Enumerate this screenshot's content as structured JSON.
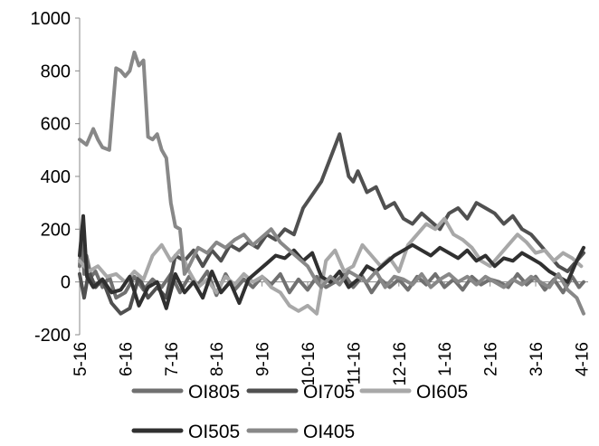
{
  "chart_data": {
    "type": "line",
    "title": "",
    "xlabel": "",
    "ylabel": "",
    "ylim": [
      -200,
      1000
    ],
    "yticks": [
      -200,
      0,
      200,
      400,
      600,
      800,
      1000
    ],
    "xticks": [
      "5-16",
      "6-16",
      "7-16",
      "8-16",
      "9-16",
      "10-16",
      "11-16",
      "12-16",
      "1-16",
      "2-16",
      "3-16",
      "4-16"
    ],
    "grid": false,
    "legend_position": "bottom",
    "x_note": "x values are months (0 = 5-16, 11 = 4-16)",
    "series": [
      {
        "name": "OI805",
        "color": "#707070",
        "x": [
          0,
          0.05,
          0.1,
          0.15,
          0.25,
          0.35,
          0.5,
          0.65,
          0.8,
          1.0,
          1.2,
          1.4,
          1.6,
          1.8,
          2.0,
          2.2,
          2.4,
          2.6,
          2.8,
          3.0,
          3.2,
          3.4,
          3.6,
          3.8,
          4.0,
          4.2,
          4.4,
          4.6,
          4.8,
          5.0,
          5.2,
          5.4,
          5.6,
          5.8,
          6.0,
          6.2,
          6.4,
          6.6,
          6.8,
          7.0,
          7.2,
          7.4,
          7.6,
          7.8,
          8.0,
          8.2,
          8.4,
          8.6,
          8.8,
          9.0,
          9.2,
          9.4,
          9.6,
          9.8,
          10.0,
          10.2,
          10.4,
          10.6,
          10.8,
          10.95,
          11.05
        ],
        "values": [
          60,
          170,
          30,
          100,
          20,
          40,
          -20,
          20,
          -60,
          -40,
          20,
          -30,
          10,
          -20,
          30,
          -40,
          20,
          -10,
          40,
          -50,
          30,
          -30,
          10,
          -20,
          20,
          -10,
          30,
          -40,
          10,
          -30,
          20,
          -20,
          0,
          30,
          -20,
          20,
          -40,
          10,
          -20,
          10,
          -30,
          20,
          -10,
          30,
          -20,
          10,
          -30,
          20,
          -10,
          10,
          0,
          -20,
          30,
          -10,
          20,
          -30,
          10,
          -40,
          20,
          -20,
          0
        ]
      },
      {
        "name": "OI705",
        "color": "#505050",
        "x": [
          0,
          0.1,
          0.2,
          0.35,
          0.5,
          0.7,
          0.9,
          1.1,
          1.3,
          1.5,
          1.7,
          1.9,
          2.1,
          2.3,
          2.5,
          2.7,
          2.9,
          3.1,
          3.3,
          3.5,
          3.7,
          3.9,
          4.1,
          4.3,
          4.5,
          4.7,
          4.9,
          5.1,
          5.3,
          5.5,
          5.7,
          5.9,
          6.0,
          6.1,
          6.3,
          6.5,
          6.7,
          6.9,
          7.1,
          7.3,
          7.5,
          7.7,
          7.9,
          8.1,
          8.3,
          8.5,
          8.7,
          8.9,
          9.1,
          9.3,
          9.5,
          9.7,
          9.9,
          10.1,
          10.3,
          10.5,
          10.7,
          10.9,
          11.05
        ],
        "values": [
          30,
          -60,
          40,
          -20,
          10,
          -80,
          -120,
          -100,
          20,
          -60,
          -20,
          -60,
          100,
          80,
          120,
          60,
          120,
          80,
          140,
          120,
          150,
          130,
          180,
          160,
          200,
          180,
          280,
          330,
          380,
          470,
          560,
          400,
          380,
          420,
          340,
          360,
          280,
          300,
          240,
          220,
          260,
          230,
          200,
          260,
          280,
          240,
          300,
          280,
          260,
          220,
          250,
          200,
          180,
          140,
          100,
          60,
          40,
          80,
          110
        ]
      },
      {
        "name": "OI605",
        "color": "#a8a8a8",
        "x": [
          0,
          0.2,
          0.4,
          0.6,
          0.8,
          1.0,
          1.2,
          1.4,
          1.6,
          1.8,
          2.0,
          2.2,
          2.4,
          2.6,
          2.8,
          3.0,
          3.2,
          3.4,
          3.6,
          3.8,
          4.0,
          4.2,
          4.4,
          4.6,
          4.8,
          5.0,
          5.2,
          5.4,
          5.6,
          5.8,
          6.0,
          6.2,
          6.4,
          6.6,
          6.8,
          7.0,
          7.2,
          7.4,
          7.6,
          7.8,
          8.0,
          8.2,
          8.4,
          8.6,
          8.8,
          9.0,
          9.2,
          9.4,
          9.6,
          9.8,
          10.0,
          10.2,
          10.4,
          10.6,
          10.8,
          11.0
        ],
        "values": [
          80,
          40,
          60,
          20,
          30,
          0,
          40,
          10,
          100,
          140,
          80,
          120,
          40,
          -20,
          10,
          -40,
          20,
          -10,
          30,
          0,
          20,
          -20,
          -40,
          -90,
          -110,
          -90,
          -120,
          80,
          120,
          40,
          60,
          140,
          100,
          60,
          90,
          40,
          140,
          180,
          220,
          200,
          240,
          180,
          160,
          130,
          80,
          60,
          100,
          140,
          180,
          150,
          110,
          120,
          80,
          110,
          90,
          60
        ]
      },
      {
        "name": "OI505",
        "color": "#303030",
        "x": [
          0,
          0.08,
          0.16,
          0.3,
          0.5,
          0.7,
          0.9,
          1.1,
          1.3,
          1.5,
          1.7,
          1.9,
          2.1,
          2.3,
          2.5,
          2.7,
          2.9,
          3.1,
          3.3,
          3.5,
          3.7,
          3.9,
          4.1,
          4.3,
          4.5,
          4.7,
          4.9,
          5.1,
          5.3,
          5.5,
          5.7,
          5.9,
          6.1,
          6.3,
          6.5,
          6.7,
          6.9,
          7.1,
          7.3,
          7.5,
          7.7,
          7.9,
          8.1,
          8.3,
          8.5,
          8.7,
          8.9,
          9.1,
          9.3,
          9.5,
          9.7,
          9.9,
          10.1,
          10.3,
          10.5,
          10.7,
          10.9,
          11.05
        ],
        "values": [
          100,
          250,
          20,
          -20,
          10,
          -40,
          -30,
          20,
          -90,
          -20,
          0,
          -100,
          30,
          -40,
          0,
          -60,
          40,
          -40,
          0,
          -80,
          10,
          40,
          70,
          100,
          90,
          120,
          80,
          110,
          20,
          0,
          40,
          -20,
          10,
          60,
          40,
          70,
          100,
          120,
          140,
          120,
          100,
          130,
          110,
          90,
          120,
          80,
          100,
          60,
          90,
          80,
          110,
          90,
          70,
          40,
          20,
          0,
          80,
          130
        ]
      },
      {
        "name": "OI405",
        "color": "#888888",
        "x": [
          0,
          0.15,
          0.3,
          0.4,
          0.5,
          0.65,
          0.8,
          0.9,
          1.0,
          1.1,
          1.2,
          1.3,
          1.4,
          1.5,
          1.6,
          1.7,
          1.8,
          1.9,
          2.0,
          2.1,
          2.2,
          2.3,
          2.4,
          2.6,
          2.8,
          3.0,
          3.2,
          3.4,
          3.6,
          3.8,
          4.0,
          4.2,
          4.4,
          4.6,
          4.8,
          5.0,
          5.2,
          5.3,
          5.5,
          5.7,
          5.9,
          6.1,
          6.3,
          6.5,
          6.7,
          6.9,
          7.1,
          7.3,
          7.5,
          7.7,
          7.9,
          8.1,
          8.3,
          8.5,
          8.7,
          8.9,
          9.1,
          9.3,
          9.5,
          9.7,
          9.9,
          10.1,
          10.3,
          10.5,
          10.7,
          10.9,
          11.05
        ],
        "values": [
          540,
          520,
          580,
          540,
          510,
          500,
          810,
          800,
          780,
          800,
          870,
          820,
          840,
          550,
          540,
          560,
          500,
          470,
          300,
          210,
          200,
          30,
          60,
          130,
          110,
          150,
          130,
          160,
          180,
          140,
          170,
          200,
          150,
          120,
          90,
          60,
          0,
          -20,
          20,
          -10,
          40,
          20,
          0,
          40,
          -20,
          20,
          10,
          -10,
          30,
          -20,
          10,
          30,
          0,
          20,
          -10,
          20,
          0,
          -20,
          10,
          -10,
          20,
          0,
          -20,
          30,
          -30,
          -60,
          -120
        ]
      }
    ]
  }
}
